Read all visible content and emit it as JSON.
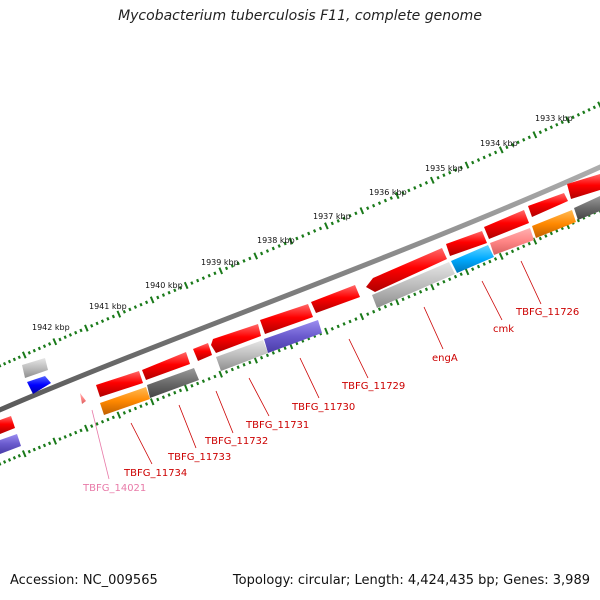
{
  "title": "Mycobacterium tuberculosis F11, complete genome",
  "accession": "Accession: NC_009565",
  "summary": "Topology: circular; Length: 4,424,435 bp; Genes: 3,989",
  "kbp_labels": [
    "1933 kbp",
    "1934 kbp",
    "1935 kbp",
    "1936 kbp",
    "1937 kbp",
    "1938 kbp",
    "1939 kbp",
    "1940 kbp",
    "1941 kbp",
    "1942 kbp"
  ],
  "gene_labels": [
    {
      "text": "TBFG_11726",
      "color": "#cc0000"
    },
    {
      "text": "cmk",
      "color": "#cc0000"
    },
    {
      "text": "engA",
      "color": "#cc0000"
    },
    {
      "text": "TBFG_11729",
      "color": "#cc0000"
    },
    {
      "text": "TBFG_11730",
      "color": "#cc0000"
    },
    {
      "text": "TBFG_11731",
      "color": "#cc0000"
    },
    {
      "text": "TBFG_11732",
      "color": "#cc0000"
    },
    {
      "text": "TBFG_11733",
      "color": "#cc0000"
    },
    {
      "text": "TBFG_11734",
      "color": "#cc0000"
    },
    {
      "text": "TBFG_14021",
      "color": "#e87aa8"
    }
  ],
  "colors": {
    "cds_red": "#ff0000",
    "backbone": "#808080",
    "tick": "#1a7a1a",
    "label_red": "#cc0000",
    "cyan": "#00aaff",
    "orange": "#ff8800",
    "purple": "#6a5acd",
    "blue": "#0000ff",
    "pink": "#f5a0b8"
  }
}
